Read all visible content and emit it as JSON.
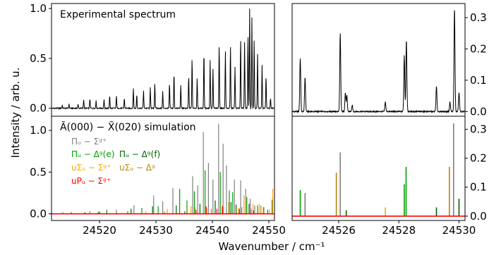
{
  "figure": {
    "xlabel": "Wavenumber / cm⁻¹",
    "ylabel": "Intensity / arb. u."
  },
  "colors": {
    "black": "#000000",
    "gray": "#808080",
    "green": "#00a000",
    "dark_green": "#006000",
    "orange": "#ffa500",
    "dark_orange": "#b8860b",
    "red": "#ff0000"
  },
  "chart_data": [
    {
      "id": "top-left",
      "type": "line",
      "title": "Experimental spectrum",
      "xlim": [
        24511.5,
        24551
      ],
      "ylim": [
        -0.08,
        1.05
      ],
      "yticks": [
        0.0,
        0.5,
        1.0
      ],
      "ytick_labels": [
        "0.0",
        "0.5",
        "1.0"
      ],
      "series": [
        {
          "style": "spectrum",
          "color": "black",
          "baseline": 0.0,
          "peaks": [
            [
              24513.4,
              0.03
            ],
            [
              24514.6,
              0.04
            ],
            [
              24516.2,
              0.04
            ],
            [
              24517.2,
              0.09
            ],
            [
              24518.3,
              0.1
            ],
            [
              24519.4,
              0.08
            ],
            [
              24520.8,
              0.09
            ],
            [
              24521.8,
              0.13
            ],
            [
              24523.0,
              0.13
            ],
            [
              24524.4,
              0.1
            ],
            [
              24526.0,
              0.2
            ],
            [
              24526.6,
              0.14
            ],
            [
              24527.8,
              0.18
            ],
            [
              24529.0,
              0.21
            ],
            [
              24529.8,
              0.26
            ],
            [
              24531.2,
              0.17
            ],
            [
              24532.4,
              0.25
            ],
            [
              24533.2,
              0.36
            ],
            [
              24534.4,
              0.23
            ],
            [
              24535.8,
              0.33
            ],
            [
              24536.4,
              0.51
            ],
            [
              24537.3,
              0.31
            ],
            [
              24538.5,
              0.58
            ],
            [
              24539.6,
              0.48
            ],
            [
              24540.1,
              0.4
            ],
            [
              24541.2,
              0.65
            ],
            [
              24542.3,
              0.58
            ],
            [
              24543.2,
              0.63
            ],
            [
              24544.0,
              0.42
            ],
            [
              24545.0,
              0.72
            ],
            [
              24545.7,
              0.66
            ],
            [
              24546.3,
              0.75
            ],
            [
              24546.6,
              1.0
            ],
            [
              24547.0,
              0.92
            ],
            [
              24547.4,
              0.7
            ],
            [
              24548.0,
              0.55
            ],
            [
              24548.8,
              0.43
            ],
            [
              24549.5,
              0.33
            ],
            [
              24550.3,
              0.1
            ]
          ]
        }
      ]
    },
    {
      "id": "bottom-left",
      "type": "line",
      "title": "Ã(000) − X̃(020) simulation",
      "xlim": [
        24511.5,
        24551
      ],
      "ylim": [
        -0.08,
        1.17
      ],
      "xticks": [
        24520,
        24530,
        24540,
        24550
      ],
      "xtick_labels": [
        "24520",
        "24530",
        "24540",
        "24550"
      ],
      "yticks": [
        0.0,
        0.5,
        1.0
      ],
      "ytick_labels": [
        "0.0",
        "0.5",
        "1.0"
      ],
      "legend": [
        {
          "label": "Πᵤ − Σᵍ⁺",
          "color": "gray"
        },
        {
          "label": "Πᵤ − Δᵍ(e)",
          "color": "green"
        },
        {
          "label": "Πᵤ − Δᵍ(f)",
          "color": "dark_green"
        },
        {
          "label": "uΣᵤ − Σᵍ⁺",
          "color": "orange"
        },
        {
          "label": "uΣᵤ − Δᵍ",
          "color": "dark_orange"
        },
        {
          "label": "uPᵤ − Σᵍ⁺",
          "color": "red"
        }
      ],
      "series": [
        {
          "color": "gray",
          "peaks": [
            [
              24513.5,
              0.02
            ],
            [
              24518.3,
              0.03
            ],
            [
              24523.0,
              0.05
            ],
            [
              24526.1,
              0.1
            ],
            [
              24529.6,
              0.22
            ],
            [
              24531.2,
              0.15
            ],
            [
              24533.0,
              0.31
            ],
            [
              24536.5,
              0.45
            ],
            [
              24537.4,
              0.34
            ],
            [
              24538.4,
              0.98
            ],
            [
              24539.3,
              0.61
            ],
            [
              24540.1,
              0.41
            ],
            [
              24541.1,
              1.08
            ],
            [
              24541.9,
              0.84
            ],
            [
              24542.5,
              0.58
            ],
            [
              24543.9,
              0.41
            ],
            [
              24545.0,
              0.4
            ],
            [
              24545.9,
              0.3
            ],
            [
              24546.7,
              0.18
            ],
            [
              24547.5,
              0.1
            ]
          ]
        },
        {
          "color": "green",
          "peaks": [
            [
              24515.0,
              0.02
            ],
            [
              24517.4,
              0.02
            ],
            [
              24520.0,
              0.03
            ],
            [
              24521.3,
              0.05
            ],
            [
              24525.0,
              0.03
            ],
            [
              24527.5,
              0.07
            ],
            [
              24530.4,
              0.09
            ],
            [
              24534.2,
              0.3
            ],
            [
              24535.5,
              0.16
            ],
            [
              24536.8,
              0.27
            ],
            [
              24538.7,
              0.52
            ],
            [
              24541.4,
              0.5
            ],
            [
              24543.0,
              0.28
            ],
            [
              24543.6,
              0.26
            ],
            [
              24546.1,
              0.2
            ],
            [
              24548.0,
              0.1
            ],
            [
              24549.8,
              0.05
            ]
          ]
        },
        {
          "color": "dark_green",
          "peaks": [
            [
              24519.8,
              0.02
            ],
            [
              24525.6,
              0.06
            ],
            [
              24529.4,
              0.09
            ],
            [
              24533.6,
              0.1
            ],
            [
              24537.8,
              0.12
            ],
            [
              24540.5,
              0.16
            ],
            [
              24543.3,
              0.14
            ],
            [
              24544.2,
              0.11
            ],
            [
              24546.5,
              0.12
            ],
            [
              24549.1,
              0.08
            ],
            [
              24550.6,
              0.17
            ]
          ]
        },
        {
          "color": "orange",
          "peaks": [
            [
              24528.2,
              0.03
            ],
            [
              24532.0,
              0.06
            ],
            [
              24536.2,
              0.09
            ],
            [
              24539.0,
              0.07
            ],
            [
              24541.7,
              0.1
            ],
            [
              24544.6,
              0.07
            ],
            [
              24545.6,
              0.22
            ],
            [
              24547.2,
              0.12
            ],
            [
              24548.3,
              0.12
            ],
            [
              24549.0,
              0.08
            ],
            [
              24550.1,
              0.05
            ],
            [
              24550.7,
              0.3
            ]
          ]
        },
        {
          "color": "dark_orange",
          "peaks": [
            [
              24531.5,
              0.03
            ],
            [
              24536.9,
              0.08
            ],
            [
              24539.8,
              0.06
            ],
            [
              24542.9,
              0.14
            ],
            [
              24545.2,
              0.08
            ],
            [
              24546.9,
              0.06
            ],
            [
              24548.6,
              0.1
            ]
          ]
        },
        {
          "color": "red",
          "peaks": [
            [
              24535.1,
              0.03
            ],
            [
              24537.1,
              0.05
            ],
            [
              24538.9,
              0.09
            ],
            [
              24540.8,
              0.06
            ],
            [
              24541.8,
              0.09
            ],
            [
              24544.8,
              0.06
            ],
            [
              24547.3,
              0.04
            ]
          ]
        }
      ]
    },
    {
      "id": "top-right",
      "type": "line",
      "xlim": [
        24524.45,
        24530.2
      ],
      "ylim": [
        -0.015,
        0.345
      ],
      "yticks": [
        0.0,
        0.1,
        0.2,
        0.3
      ],
      "ytick_labels": [
        "0.0",
        "0.1",
        "0.2",
        "0.3"
      ],
      "series": [
        {
          "style": "spectrum",
          "color": "black",
          "baseline": 0.0,
          "peaks": [
            [
              24524.72,
              0.17
            ],
            [
              24524.88,
              0.11
            ],
            [
              24526.05,
              0.25
            ],
            [
              24526.22,
              0.06
            ],
            [
              24526.27,
              0.05
            ],
            [
              24526.45,
              0.02
            ],
            [
              24527.55,
              0.03
            ],
            [
              24528.18,
              0.18
            ],
            [
              24528.25,
              0.23
            ],
            [
              24529.25,
              0.08
            ],
            [
              24529.7,
              0.03
            ],
            [
              24529.85,
              0.33
            ],
            [
              24530.0,
              0.06
            ]
          ]
        }
      ]
    },
    {
      "id": "bottom-right",
      "type": "line",
      "xlim": [
        24524.45,
        24530.2
      ],
      "ylim": [
        -0.015,
        0.345
      ],
      "xticks": [
        24526,
        24528,
        24530
      ],
      "xtick_labels": [
        "24526",
        "24528",
        "24530"
      ],
      "yticks": [
        0.0,
        0.1,
        0.2,
        0.3
      ],
      "ytick_labels": [
        "0.0",
        "0.1",
        "0.2",
        "0.3"
      ],
      "series": [
        {
          "color": "green",
          "peaks": [
            [
              24524.72,
              0.09
            ],
            [
              24528.18,
              0.11
            ],
            [
              24528.24,
              0.17
            ]
          ]
        },
        {
          "color": "gray",
          "peaks": [
            [
              24524.88,
              0.08
            ],
            [
              24526.05,
              0.22
            ],
            [
              24529.82,
              0.32
            ]
          ]
        },
        {
          "color": "dark_green",
          "peaks": [
            [
              24526.25,
              0.02
            ],
            [
              24529.25,
              0.03
            ]
          ]
        },
        {
          "color": "dark_orange",
          "peaks": [
            [
              24525.92,
              0.15
            ],
            [
              24529.68,
              0.17
            ]
          ]
        },
        {
          "color": "orange",
          "peaks": [
            [
              24527.55,
              0.03
            ]
          ]
        },
        {
          "color": "dark_green",
          "peaks": [
            [
              24530.0,
              0.06
            ]
          ]
        }
      ]
    }
  ]
}
